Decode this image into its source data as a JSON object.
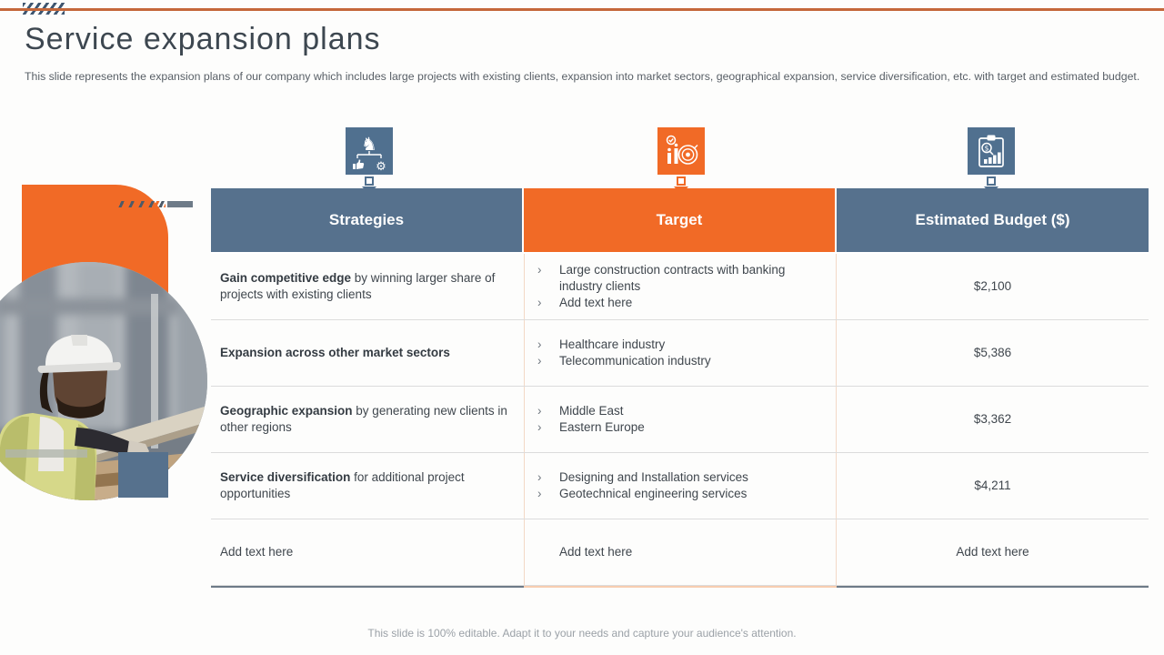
{
  "slide": {
    "title": "Service expansion plans",
    "subtitle": "This slide represents the expansion plans of our company which includes large projects with existing clients, expansion into market sectors, geographical expansion, service diversification, etc. with target and estimated budget.",
    "footer": "This slide is 100% editable. Adapt it to your needs and capture your audience's attention."
  },
  "colors": {
    "accent_orange": "#F16A26",
    "accent_blue": "#56718D",
    "icon_blue": "#50708F",
    "top_line_orange": "#C4673A",
    "row_separator": "#DCDCDC",
    "column_separator_peach": "#F3D9C6"
  },
  "icons": [
    {
      "name": "strategy-icon",
      "meaning": "chess knight with thumbs-up and gear",
      "color": "#50708F"
    },
    {
      "name": "target-icon",
      "meaning": "bar chart with dartboard target",
      "color": "#F16A26"
    },
    {
      "name": "budget-icon",
      "meaning": "clipboard with dollar magnifier and bar chart",
      "color": "#50708F"
    }
  ],
  "table": {
    "bullet_char": "›",
    "headers": [
      "Strategies",
      "Target",
      "Estimated Budget ($)"
    ],
    "rows": [
      {
        "strategy_bold": "Gain competitive edge",
        "strategy_rest": " by winning larger share of projects with existing clients",
        "targets": [
          "Large construction contracts with banking industry clients",
          "Add text here"
        ],
        "bulleted": true,
        "budget": "$2,100"
      },
      {
        "strategy_bold": "Expansion across other market sectors",
        "strategy_rest": "",
        "targets": [
          "Healthcare industry",
          "Telecommunication industry"
        ],
        "bulleted": true,
        "budget": "$5,386"
      },
      {
        "strategy_bold": "Geographic expansion",
        "strategy_rest": " by generating new clients in other regions",
        "targets": [
          "Middle East",
          "Eastern Europe"
        ],
        "bulleted": true,
        "budget": "$3,362"
      },
      {
        "strategy_bold": "Service diversification",
        "strategy_rest": " for additional project opportunities",
        "targets": [
          "Designing and Installation services",
          "Geotechnical engineering services"
        ],
        "bulleted": true,
        "budget": "$4,211"
      },
      {
        "strategy_bold": "",
        "strategy_rest": "Add text here",
        "targets": [
          "Add text here"
        ],
        "bulleted": false,
        "budget": "Add text here"
      }
    ]
  }
}
